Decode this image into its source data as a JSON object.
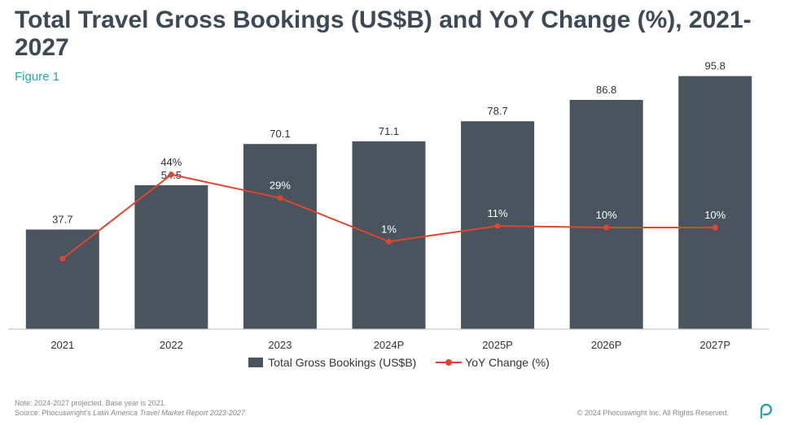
{
  "title": "Total Travel Gross Bookings (US$B) and YoY Change (%), 2021-2027",
  "figure_label": "Figure 1",
  "chart_data": {
    "type": "bar",
    "categories": [
      "2021",
      "2022",
      "2023",
      "2024P",
      "2025P",
      "2026P",
      "2027P"
    ],
    "series": [
      {
        "name": "Total Gross Bookings (US$B)",
        "type": "bar",
        "values": [
          37.7,
          54.5,
          70.1,
          71.1,
          78.7,
          86.8,
          95.8
        ],
        "labels": [
          "37.7",
          "54.5",
          "70.1",
          "71.1",
          "78.7",
          "86.8",
          "95.8"
        ]
      },
      {
        "name": "YoY Change (%)",
        "type": "line",
        "values": [
          -10,
          44,
          29,
          1,
          11,
          10,
          10
        ],
        "labels": [
          "",
          "44%",
          "29%",
          "1%",
          "11%",
          "10%",
          "10%"
        ]
      }
    ],
    "ylim": [
      0,
      100
    ],
    "y2lim": [
      -50,
      70
    ],
    "legend_position": "bottom",
    "colors": {
      "bar": "#4a545e",
      "line": "#e0452e"
    }
  },
  "legend": {
    "bar_label": "Total Gross Bookings (US$B)",
    "line_label": "YoY Change (%)"
  },
  "footer": {
    "note": "Note: 2024-2027 projected. Base year is 2021.",
    "source_prefix": "Source: Phocuswright's ",
    "source_title": "Latin America Travel Market Report 2023-2027",
    "copyright": "© 2024 Phocuswright Inc. All Rights Reserved."
  }
}
